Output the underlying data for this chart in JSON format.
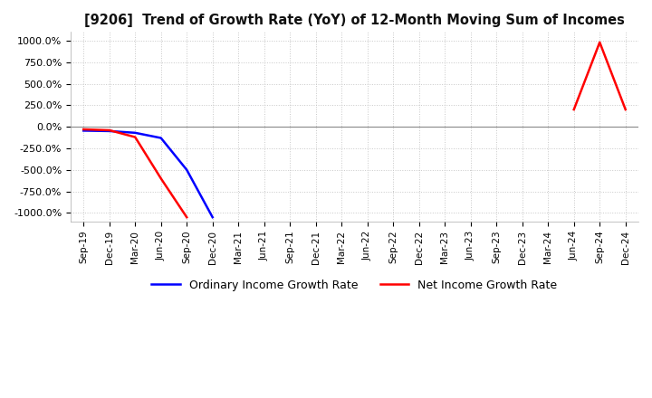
{
  "title": "[9206]  Trend of Growth Rate (YoY) of 12-Month Moving Sum of Incomes",
  "ylim": [
    -1100,
    1100
  ],
  "yticks": [
    -1000,
    -750,
    -500,
    -250,
    0,
    250,
    500,
    750,
    1000
  ],
  "ytick_labels": [
    "-1000.0%",
    "-750.0%",
    "-500.0%",
    "-250.0%",
    "0.0%",
    "250.0%",
    "500.0%",
    "750.0%",
    "1000.0%"
  ],
  "background_color": "#ffffff",
  "grid_color": "#c8c8c8",
  "ordinary_color": "#0000ff",
  "net_color": "#ff0000",
  "ordinary_label": "Ordinary Income Growth Rate",
  "net_label": "Net Income Growth Rate",
  "x_labels": [
    "Sep-19",
    "Dec-19",
    "Mar-20",
    "Jun-20",
    "Sep-20",
    "Dec-20",
    "Mar-21",
    "Jun-21",
    "Sep-21",
    "Dec-21",
    "Mar-22",
    "Jun-22",
    "Sep-22",
    "Dec-22",
    "Mar-23",
    "Jun-23",
    "Sep-23",
    "Dec-23",
    "Mar-24",
    "Jun-24",
    "Sep-24",
    "Dec-24"
  ],
  "ordinary_y": [
    -45,
    -50,
    -70,
    -130,
    -500,
    -1050,
    null,
    null,
    null,
    null,
    null,
    null,
    null,
    null,
    null,
    null,
    null,
    null,
    null,
    null,
    null,
    null
  ],
  "net_y": [
    -30,
    -40,
    -120,
    -600,
    -1050,
    null,
    null,
    null,
    null,
    null,
    null,
    null,
    null,
    null,
    null,
    null,
    null,
    null,
    null,
    200,
    980,
    200
  ]
}
